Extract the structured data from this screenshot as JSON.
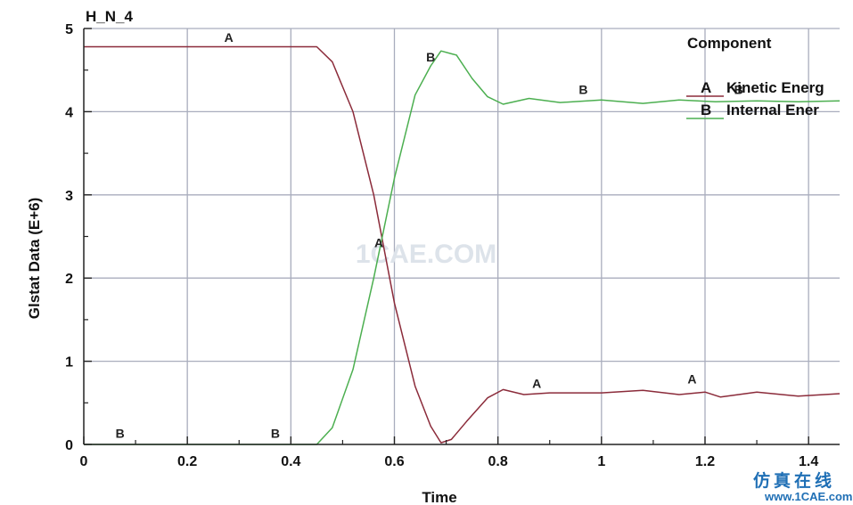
{
  "chart_data": {
    "type": "line",
    "title": "H_N_4",
    "xlabel": "Time",
    "ylabel": "Glstat Data (E+6)",
    "xlim": [
      0,
      1.46
    ],
    "ylim": [
      0,
      5
    ],
    "x_ticks": [
      0,
      0.2,
      0.4,
      0.6,
      0.8,
      1,
      1.2,
      1.4
    ],
    "x_tick_labels": [
      "0",
      "0.2",
      "0.4",
      "0.6",
      "0.8",
      "1",
      "1.2",
      "1.4"
    ],
    "y_ticks": [
      0,
      1,
      2,
      3,
      4,
      5
    ],
    "y_tick_labels": [
      "0",
      "1",
      "2",
      "3",
      "4",
      "5"
    ],
    "grid": true,
    "legend": {
      "title": "Component",
      "placement": "top-right"
    },
    "series": [
      {
        "name": "Kinetic Energ",
        "marker": "A",
        "color": "#8b2b3a",
        "x": [
          0,
          0.45,
          0.48,
          0.52,
          0.56,
          0.6,
          0.64,
          0.67,
          0.69,
          0.71,
          0.74,
          0.78,
          0.81,
          0.85,
          0.9,
          1.0,
          1.08,
          1.15,
          1.2,
          1.23,
          1.3,
          1.38,
          1.46
        ],
        "y": [
          4.78,
          4.78,
          4.6,
          4.0,
          3.0,
          1.7,
          0.7,
          0.22,
          0.02,
          0.06,
          0.28,
          0.56,
          0.66,
          0.6,
          0.62,
          0.62,
          0.65,
          0.6,
          0.63,
          0.57,
          0.63,
          0.58,
          0.61
        ],
        "marker_points": [
          [
            0.28,
            4.82
          ],
          [
            0.57,
            2.35
          ],
          [
            0.875,
            0.66
          ],
          [
            1.175,
            0.71
          ]
        ]
      },
      {
        "name": "Internal Ener",
        "marker": "B",
        "color": "#4caf50",
        "x": [
          0,
          0.45,
          0.48,
          0.52,
          0.56,
          0.6,
          0.64,
          0.67,
          0.69,
          0.72,
          0.75,
          0.78,
          0.81,
          0.86,
          0.92,
          1.0,
          1.08,
          1.15,
          1.22,
          1.3,
          1.38,
          1.46
        ],
        "y": [
          0.0,
          0.0,
          0.2,
          0.9,
          2.0,
          3.2,
          4.2,
          4.55,
          4.73,
          4.68,
          4.4,
          4.18,
          4.09,
          4.16,
          4.11,
          4.14,
          4.1,
          4.14,
          4.12,
          4.13,
          4.12,
          4.13
        ],
        "marker_points": [
          [
            0.07,
            0.06
          ],
          [
            0.37,
            0.06
          ],
          [
            0.67,
            4.58
          ],
          [
            0.965,
            4.19
          ],
          [
            1.265,
            4.19
          ]
        ]
      }
    ],
    "annotations": [
      "1CAE.COM"
    ]
  },
  "site_mark": {
    "cn": "仿真在线",
    "en": "www.1CAE.com"
  }
}
